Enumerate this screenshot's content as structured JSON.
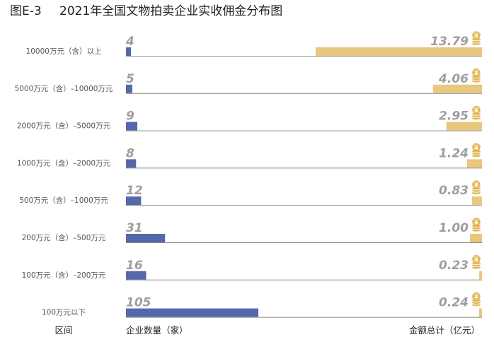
{
  "figure": {
    "label": "图E-3",
    "title": "2021年全国文物拍卖企业实收佣金分布图"
  },
  "axis_titles": {
    "category": "区间",
    "count": "企业数量（家）",
    "amount": "金额总计（亿元）"
  },
  "icon": "yen-coin-stack-icon",
  "colors": {
    "count_bar": "#5568ad",
    "amount_bar": "#e9c77d",
    "baseline": "#8a8a8a",
    "value_text": "#9e9e9e",
    "coin": "#e3b85a"
  },
  "chart_data": {
    "type": "bar",
    "title": "2021年全国文物拍卖企业实收佣金分布图",
    "categories": [
      "10000万元（含）以上",
      "5000万元（含）–10000万元",
      "2000万元（含）–5000万元",
      "1000万元（含）–2000万元",
      "500万元（含）–1000万元",
      "200万元（含）–500万元",
      "100万元（含）–200万元",
      "100万元以下"
    ],
    "series": [
      {
        "name": "企业数量（家）",
        "values": [
          4,
          5,
          9,
          8,
          12,
          31,
          16,
          105
        ],
        "labels": [
          "4",
          "5",
          "9",
          "8",
          "12",
          "31",
          "16",
          "105"
        ],
        "direction": "left-to-right"
      },
      {
        "name": "金额总计（亿元）",
        "values": [
          13.79,
          4.06,
          2.95,
          1.24,
          0.83,
          1.0,
          0.23,
          0.24
        ],
        "labels": [
          "13.79",
          "4.06",
          "2.95",
          "1.24",
          "0.83",
          "1.00",
          "0.23",
          "0.24"
        ],
        "direction": "right-to-left"
      }
    ],
    "xlim_count": [
      0,
      105
    ],
    "xlim_amount": [
      0,
      13.79
    ],
    "grid": false,
    "legend": "none"
  }
}
